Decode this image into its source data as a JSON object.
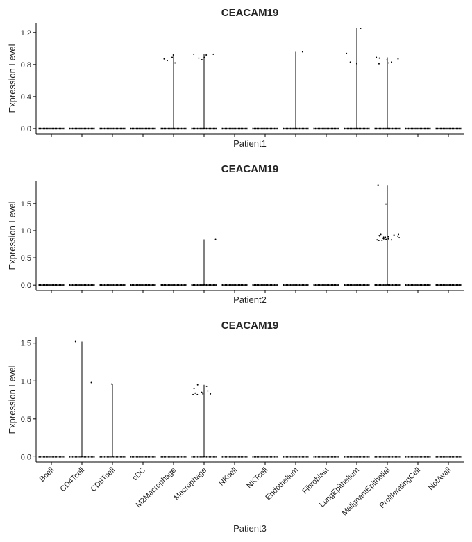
{
  "chart_data": [
    {
      "type": "violin",
      "title": "CEACAM19",
      "x_label": "Patient1",
      "y_label": "Expression Level",
      "categories": [
        null,
        null,
        null,
        null,
        null,
        null,
        null,
        null,
        null,
        null,
        null,
        null,
        null,
        null
      ],
      "values": [
        0,
        0,
        0,
        0,
        0.91,
        0.93,
        0,
        0,
        0.96,
        0,
        1.25,
        0.89,
        0,
        0
      ],
      "points": [
        [],
        [],
        [],
        [],
        [
          0.92,
          0.82,
          0.87,
          0.85,
          0.89
        ],
        [
          0.89,
          0.93,
          0.93,
          0.92,
          0.86,
          0.88
        ],
        [],
        [],
        [
          0.96
        ],
        [],
        [
          1.25,
          0.94,
          0.81,
          0.83
        ],
        [
          0.83,
          0.81,
          0.82,
          0.86,
          0.88,
          0.89,
          0.87
        ],
        [],
        []
      ],
      "ylim": [
        -0.07,
        1.32
      ],
      "yticks": [
        {
          "value": 0,
          "label": "0.0"
        },
        {
          "value": 0.4,
          "label": "0.4"
        },
        {
          "value": 0.8,
          "label": "0.8"
        },
        {
          "value": 1.2,
          "label": "1.2"
        }
      ],
      "color": "#000000"
    },
    {
      "type": "violin",
      "title": "CEACAM19",
      "x_label": "Patient2",
      "y_label": "Expression Level",
      "categories": [
        null,
        null,
        null,
        null,
        null,
        null,
        null,
        null,
        null,
        null,
        null,
        null,
        null,
        null
      ],
      "values": [
        0,
        0,
        0,
        0,
        0,
        0.84,
        0,
        0,
        0,
        0,
        0,
        1.84,
        0,
        0
      ],
      "points": [
        [],
        [],
        [],
        [],
        [],
        [
          0.84
        ],
        [],
        [],
        [],
        [],
        [],
        [
          1.84,
          1.49,
          0.93,
          0.9,
          0.88,
          0.85,
          0.83,
          0.82,
          0.91,
          0.87,
          0.84,
          0.93,
          0.89,
          0.86,
          0.82,
          0.92,
          0.85,
          0.88,
          0.83,
          0.9
        ],
        [],
        []
      ],
      "ylim": [
        -0.1,
        1.92
      ],
      "yticks": [
        {
          "value": 0,
          "label": "0.0"
        },
        {
          "value": 0.5,
          "label": "0.5"
        },
        {
          "value": 1,
          "label": "1.0"
        },
        {
          "value": 1.5,
          "label": "1.5"
        }
      ],
      "color": "#000000"
    },
    {
      "type": "violin",
      "title": "CEACAM19",
      "x_label": "Patient3",
      "y_label": "Expression Level",
      "categories": [
        "Bcell",
        "CD4Tcell",
        "CD8Tcell",
        "cDC",
        "M2Macrophage",
        "Macrophage",
        "NKcell",
        "NKTcell",
        "Endothelium",
        "Fibroblast",
        "LungEpithelium",
        "MalignantEpithelial",
        "ProliferatingCell",
        "NotAvail"
      ],
      "values": [
        0,
        1.52,
        0.96,
        0,
        0,
        0.95,
        0,
        0,
        0,
        0,
        0,
        0,
        0,
        0
      ],
      "points": [
        [],
        [
          1.52,
          0.98
        ],
        [
          0.96
        ],
        [],
        [],
        [
          0.95,
          0.93,
          0.85,
          0.83,
          0.87,
          0.84,
          0.82,
          0.83,
          0.9,
          0.82
        ],
        [],
        [],
        [],
        [],
        [],
        [],
        [],
        []
      ],
      "ylim": [
        -0.07,
        1.58
      ],
      "yticks": [
        {
          "value": 0,
          "label": "0.0"
        },
        {
          "value": 0.5,
          "label": "0.5"
        },
        {
          "value": 1,
          "label": "1.0"
        },
        {
          "value": 1.5,
          "label": "1.5"
        }
      ],
      "color": "#000000"
    }
  ]
}
